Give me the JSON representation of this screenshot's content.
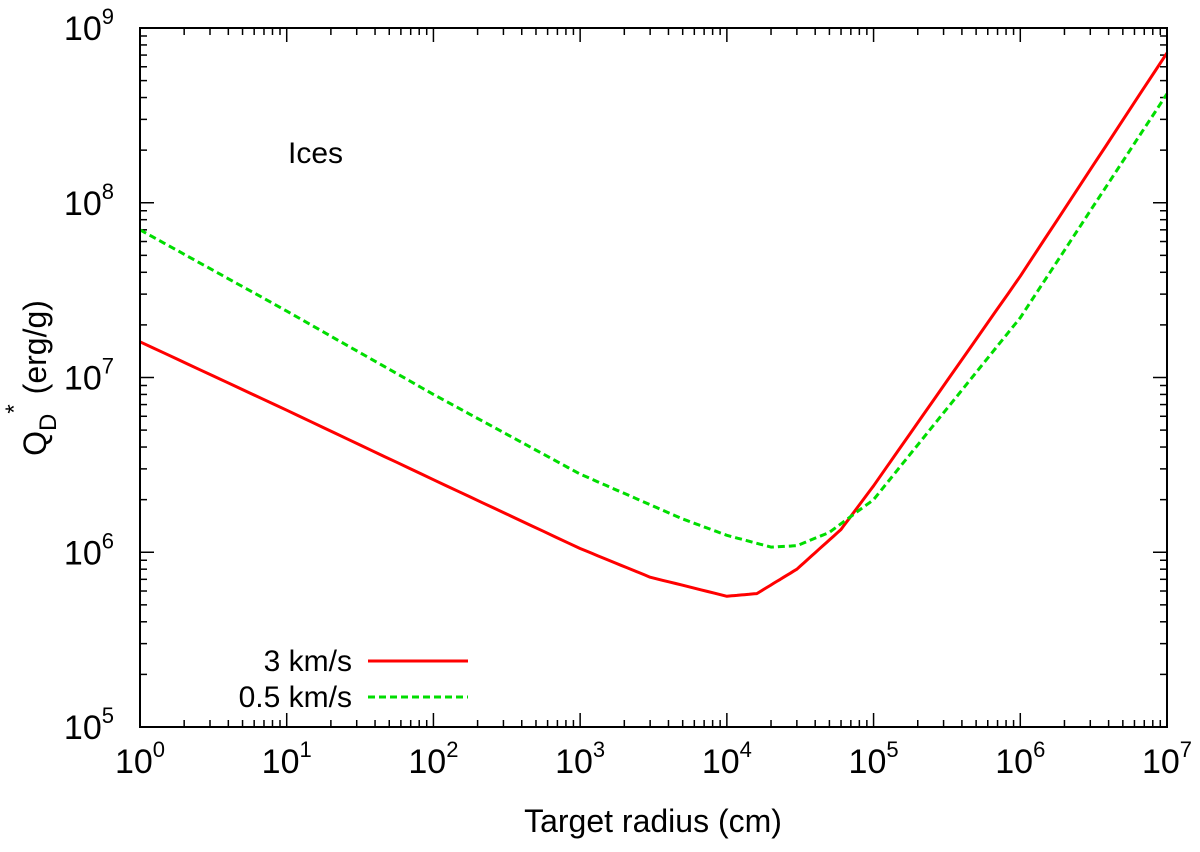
{
  "chart_data": {
    "type": "line",
    "title": "",
    "xlabel": "Target radius (cm)",
    "ylabel": {
      "main": "Q",
      "subscript": "D",
      "superscript": "*",
      "unit": "(erg/g)"
    },
    "xscale": "log",
    "yscale": "log",
    "xlim": [
      1,
      10000000
    ],
    "ylim": [
      100000,
      1000000000
    ],
    "grid": false,
    "legend_position": "bottom-left",
    "x_ticks": [
      {
        "base": "10",
        "exp": "0"
      },
      {
        "base": "10",
        "exp": "1"
      },
      {
        "base": "10",
        "exp": "2"
      },
      {
        "base": "10",
        "exp": "3"
      },
      {
        "base": "10",
        "exp": "4"
      },
      {
        "base": "10",
        "exp": "5"
      },
      {
        "base": "10",
        "exp": "6"
      },
      {
        "base": "10",
        "exp": "7"
      }
    ],
    "y_ticks": [
      {
        "base": "10",
        "exp": "5"
      },
      {
        "base": "10",
        "exp": "6"
      },
      {
        "base": "10",
        "exp": "7"
      },
      {
        "base": "10",
        "exp": "8"
      },
      {
        "base": "10",
        "exp": "9"
      }
    ],
    "annotations": [
      {
        "text": "Ices",
        "position": "upper-left"
      }
    ],
    "series": [
      {
        "name": "3 km/s",
        "color": "#ff0000",
        "style": "solid",
        "points": [
          [
            1,
            16000000
          ],
          [
            10,
            6500000
          ],
          [
            100,
            2600000
          ],
          [
            1000,
            1050000
          ],
          [
            3000,
            720000
          ],
          [
            10000,
            560000
          ],
          [
            16000,
            580000
          ],
          [
            30000,
            800000
          ],
          [
            60000,
            1350000
          ],
          [
            100000,
            2400000
          ],
          [
            1000000,
            38000000
          ],
          [
            10000000,
            720000000
          ]
        ]
      },
      {
        "name": "0.5 km/s",
        "color": "#00dd00",
        "style": "dashed",
        "points": [
          [
            1,
            70000000
          ],
          [
            10,
            24000000
          ],
          [
            100,
            8000000
          ],
          [
            1000,
            2800000
          ],
          [
            5000,
            1550000
          ],
          [
            10000,
            1250000
          ],
          [
            20000,
            1070000
          ],
          [
            30000,
            1090000
          ],
          [
            50000,
            1300000
          ],
          [
            100000,
            2000000
          ],
          [
            1000000,
            22000000
          ],
          [
            10000000,
            420000000
          ]
        ]
      }
    ]
  }
}
